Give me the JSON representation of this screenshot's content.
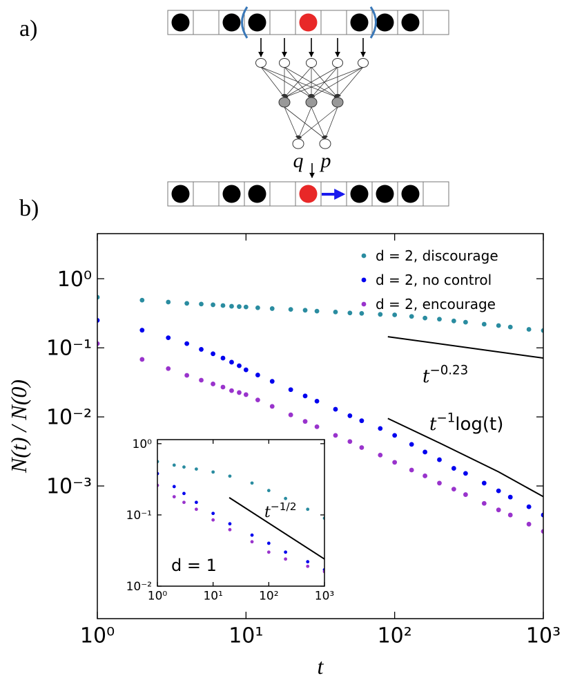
{
  "figure": {
    "panel_labels": [
      "a)",
      "b)"
    ],
    "output_labels": [
      "q",
      "p"
    ]
  },
  "chart_data": [
    {
      "type": "scatter",
      "x_label": "t",
      "y_label": "N(t) / N(0)",
      "log_x": true,
      "log_y": true,
      "xlim": [
        1,
        1000
      ],
      "ylim": [
        1.2e-05,
        4.5
      ],
      "xticks": [
        {
          "value": 1,
          "label": "10⁰"
        },
        {
          "value": 10,
          "label": "10¹"
        },
        {
          "value": 100,
          "label": "10²"
        },
        {
          "value": 1000,
          "label": "10³"
        }
      ],
      "yticks": [
        {
          "value": 1,
          "label": "10⁰"
        },
        {
          "value": 0.1,
          "label": "10⁻¹"
        },
        {
          "value": 0.01,
          "label": "10⁻²"
        },
        {
          "value": 0.001,
          "label": "10⁻³"
        }
      ],
      "legend": "upper right",
      "x": [
        1,
        2,
        3,
        4,
        5,
        6,
        7,
        8,
        9,
        10,
        12,
        15,
        20,
        25,
        30,
        40,
        50,
        60,
        80,
        100,
        130,
        160,
        200,
        250,
        300,
        400,
        500,
        600,
        800,
        1000
      ],
      "series": [
        {
          "name": "d = 2, discourage",
          "color": "#2a8ca0",
          "values": [
            0.54,
            0.49,
            0.46,
            0.44,
            0.43,
            0.42,
            0.41,
            0.4,
            0.395,
            0.39,
            0.38,
            0.37,
            0.36,
            0.35,
            0.34,
            0.33,
            0.32,
            0.315,
            0.305,
            0.3,
            0.285,
            0.27,
            0.26,
            0.245,
            0.235,
            0.22,
            0.21,
            0.2,
            0.185,
            0.178
          ]
        },
        {
          "name": "d = 2, no control",
          "color": "#0000ee",
          "values": [
            0.25,
            0.18,
            0.14,
            0.115,
            0.095,
            0.082,
            0.071,
            0.062,
            0.055,
            0.048,
            0.0404,
            0.0327,
            0.0248,
            0.0201,
            0.0169,
            0.0129,
            0.0104,
            0.0088,
            0.0068,
            0.0054,
            0.004,
            0.0031,
            0.0024,
            0.0018,
            0.00152,
            0.0011,
            0.00085,
            0.00069,
            0.0005,
            0.00038
          ]
        },
        {
          "name": "d = 2, encourage",
          "color": "#9933cc",
          "values": [
            0.115,
            0.068,
            0.05,
            0.04,
            0.034,
            0.03,
            0.027,
            0.024,
            0.0225,
            0.021,
            0.0176,
            0.0142,
            0.0107,
            0.0086,
            0.0072,
            0.0054,
            0.0044,
            0.0036,
            0.0028,
            0.0022,
            0.0017,
            0.0014,
            0.0011,
            0.0009,
            0.00075,
            0.00056,
            0.00045,
            0.00038,
            0.00028,
            0.00022
          ]
        }
      ],
      "reference_lines": [
        {
          "color": "#000000",
          "x": [
            90,
            1000
          ],
          "values": [
            0.145,
            0.071
          ]
        },
        {
          "color": "#000000",
          "x": [
            90,
            200,
            500,
            1000
          ],
          "values": [
            0.0095,
            0.0042,
            0.0016,
            0.0007
          ]
        }
      ],
      "annotations": [
        {
          "text": "t",
          "sup": "−0.23",
          "tail": ""
        },
        {
          "text": "t",
          "sup": "−1",
          "tail": "log(t)"
        }
      ]
    },
    {
      "type": "scatter",
      "log_x": true,
      "log_y": true,
      "xlim": [
        1,
        1000
      ],
      "ylim": [
        0.01,
        1.14
      ],
      "xticks": [
        {
          "value": 1,
          "label": "10⁰"
        },
        {
          "value": 10,
          "label": "10¹"
        },
        {
          "value": 100,
          "label": "10²"
        },
        {
          "value": 1000,
          "label": "10³"
        }
      ],
      "yticks": [
        {
          "value": 1,
          "label": "10⁰"
        },
        {
          "value": 0.1,
          "label": "10⁻¹"
        },
        {
          "value": 0.01,
          "label": "10⁻²"
        }
      ],
      "x": [
        1,
        2,
        3,
        5,
        10,
        20,
        50,
        100,
        200,
        500,
        1000
      ],
      "series": [
        {
          "color": "#2a8ca0",
          "values": [
            0.56,
            0.5,
            0.47,
            0.44,
            0.4,
            0.35,
            0.28,
            0.22,
            0.17,
            0.12,
            0.09
          ]
        },
        {
          "color": "#0000ee",
          "values": [
            0.38,
            0.25,
            0.2,
            0.15,
            0.105,
            0.075,
            0.052,
            0.04,
            0.03,
            0.022,
            0.017
          ]
        },
        {
          "color": "#9933cc",
          "values": [
            0.26,
            0.18,
            0.15,
            0.12,
            0.085,
            0.062,
            0.042,
            0.03,
            0.024,
            0.019,
            0.016
          ]
        }
      ],
      "reference_lines": [
        {
          "color": "#000000",
          "x": [
            19.5,
            1000
          ],
          "values": [
            0.175,
            0.024
          ]
        }
      ],
      "annotations": [
        {
          "text": "t",
          "sup": "−1/2",
          "tail": ""
        },
        {
          "text": "d = 1"
        }
      ]
    }
  ]
}
